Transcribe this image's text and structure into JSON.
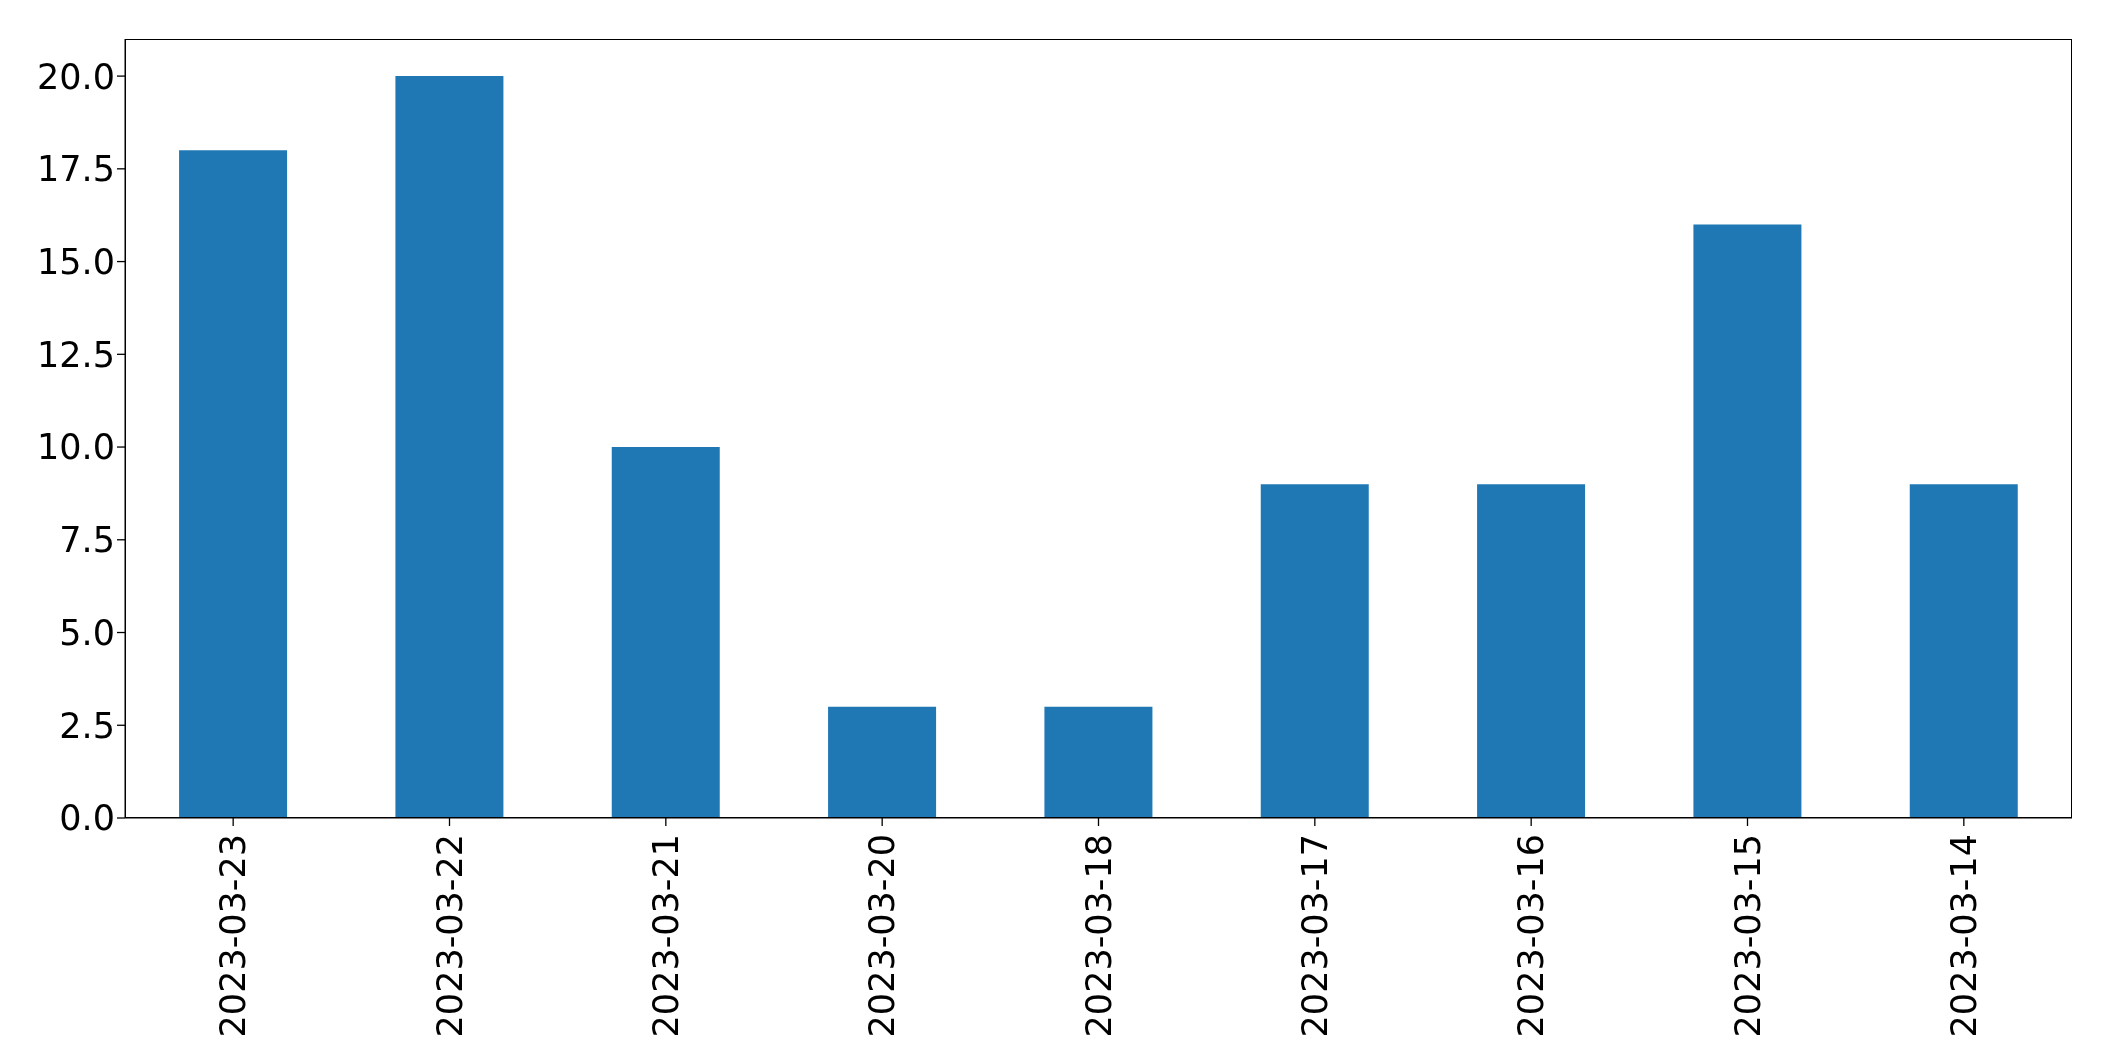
{
  "chart_data": {
    "type": "bar",
    "categories": [
      "2023-03-23",
      "2023-03-22",
      "2023-03-21",
      "2023-03-20",
      "2023-03-18",
      "2023-03-17",
      "2023-03-16",
      "2023-03-15",
      "2023-03-14"
    ],
    "values": [
      18,
      20,
      10,
      3,
      3,
      9,
      9,
      16,
      9
    ],
    "color": "#1f77b4",
    "ylim": [
      0,
      21
    ],
    "yticks": [
      {
        "value": 0,
        "label": "0.0"
      },
      {
        "value": 2.5,
        "label": "2.5"
      },
      {
        "value": 5,
        "label": "5.0"
      },
      {
        "value": 7.5,
        "label": "7.5"
      },
      {
        "value": 10,
        "label": "10.0"
      },
      {
        "value": 12.5,
        "label": "12.5"
      },
      {
        "value": 15,
        "label": "15.0"
      },
      {
        "value": 17.5,
        "label": "17.5"
      },
      {
        "value": 20,
        "label": "20.0"
      }
    ],
    "grid": false
  }
}
